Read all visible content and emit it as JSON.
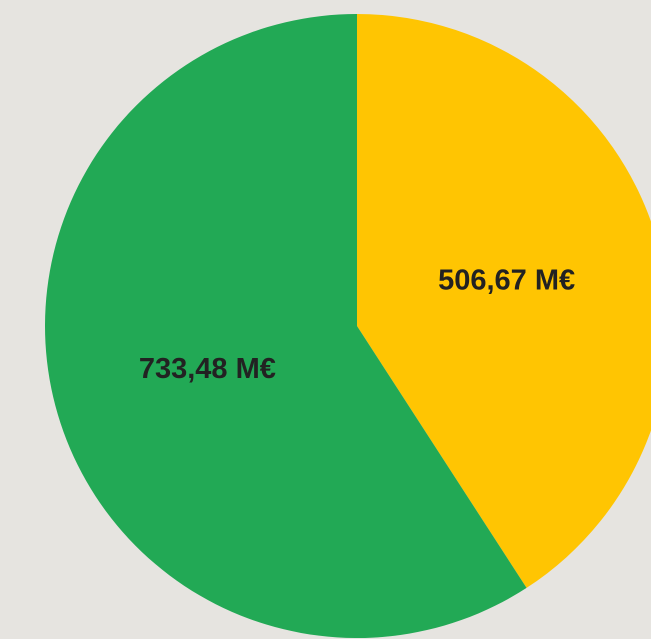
{
  "chart_data": {
    "type": "pie",
    "categories": [
      null,
      null
    ],
    "values": [
      506.67,
      733.48
    ],
    "value_labels": [
      "506,67 M€",
      "733,48 M€"
    ],
    "colors": [
      "#ffc502",
      "#22a955"
    ]
  }
}
